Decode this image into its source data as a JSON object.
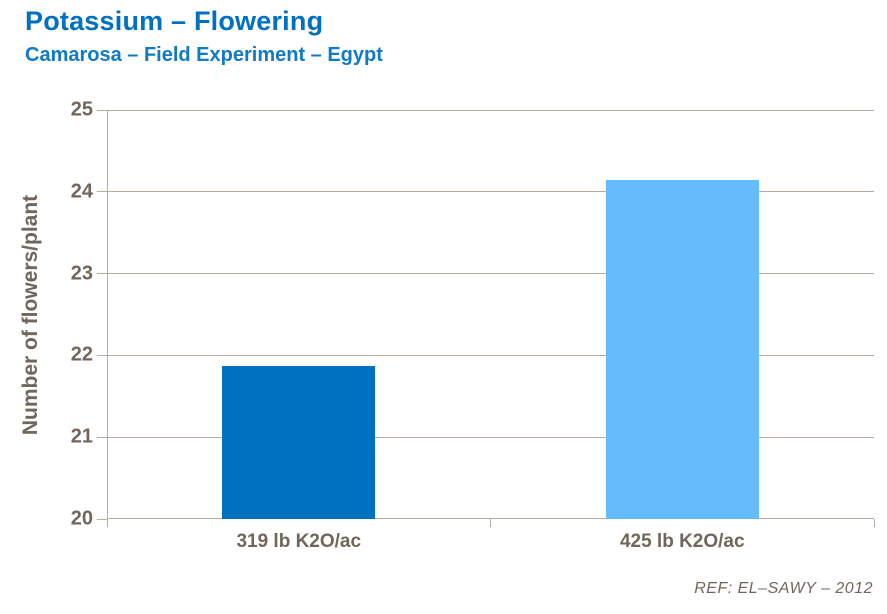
{
  "header": {
    "title": "Potassium – Flowering",
    "subtitle": "Camarosa – Field Experiment – Egypt"
  },
  "footer": {
    "ref": "REF:  EL–SAWY – 2012"
  },
  "colors": {
    "title": "#0070C0",
    "subtitle": "#0E7AC8",
    "axis_text": "#716659",
    "gridline": "#B5ABA1",
    "bars": [
      "#0070C0",
      "#66BBFA"
    ]
  },
  "chart_data": {
    "type": "bar",
    "title": "Potassium – Flowering",
    "subtitle": "Camarosa – Field Experiment – Egypt",
    "categories": [
      "319 lb K2O/ac",
      "425 lb K2O/ac"
    ],
    "values": [
      21.87,
      24.14
    ],
    "bar_colors": [
      "#0070C0",
      "#66BBFA"
    ],
    "xlabel": "",
    "ylabel": "Number of flowers/plant",
    "ylim": [
      20,
      25
    ],
    "yticks": [
      20,
      21,
      22,
      23,
      24,
      25
    ],
    "grid": true,
    "legend": false,
    "bar_width_fraction": 0.4,
    "annotation": "REF:  EL–SAWY – 2012"
  }
}
